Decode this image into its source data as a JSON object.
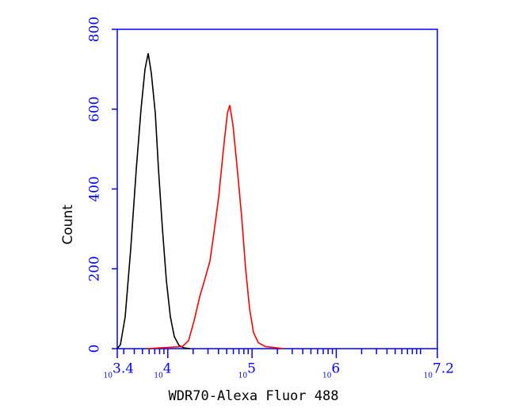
{
  "chart_data": {
    "type": "line",
    "xscale": "log",
    "x_label": "WDR70-Alexa Fluor 488",
    "y_label": "Count",
    "xlim": [
      2512,
      15848932
    ],
    "ylim": [
      0,
      800
    ],
    "xticks": [
      {
        "value": 2512,
        "label": "10",
        "exponent": "3.4"
      },
      {
        "value": 10000,
        "label": "10",
        "exponent": "4"
      },
      {
        "value": 100000,
        "label": "10",
        "exponent": "5"
      },
      {
        "value": 1000000,
        "label": "10",
        "exponent": "6"
      },
      {
        "value": 15848932,
        "label": "10",
        "exponent": "7.2"
      }
    ],
    "xminorticks": [
      3000,
      4000,
      5000,
      6000,
      7000,
      8000,
      9000,
      20000,
      30000,
      40000,
      50000,
      60000,
      70000,
      80000,
      90000,
      200000,
      300000,
      400000,
      500000,
      600000,
      700000,
      800000,
      900000,
      2000000,
      3000000,
      4000000,
      5000000,
      6000000,
      7000000,
      8000000,
      9000000,
      10000000
    ],
    "yticks": [
      0,
      200,
      400,
      600,
      800
    ],
    "axis_color": "#0000ff",
    "series": [
      {
        "color": "#000000",
        "x": [
          2512,
          2739,
          3120,
          3630,
          4225,
          4811,
          5362,
          5848,
          6375,
          7105,
          7748,
          8636,
          9623,
          10724,
          11948,
          13610,
          15496,
          18430
        ],
        "values": [
          0,
          10,
          80,
          250,
          450,
          600,
          700,
          740,
          690,
          590,
          450,
          300,
          170,
          80,
          30,
          8,
          2,
          0
        ]
      },
      {
        "color": "#ff0000",
        "x": [
          5600,
          14840,
          17650,
          20540,
          23900,
          27210,
          31670,
          35290,
          40190,
          45770,
          51010,
          54430,
          59370,
          66160,
          75330,
          83940,
          93540,
          104230,
          118740,
          144270,
          199700,
          237500
        ],
        "values": [
          0,
          5,
          20,
          70,
          130,
          170,
          220,
          290,
          380,
          500,
          590,
          610,
          560,
          460,
          330,
          200,
          100,
          40,
          15,
          5,
          2,
          0
        ]
      }
    ]
  }
}
